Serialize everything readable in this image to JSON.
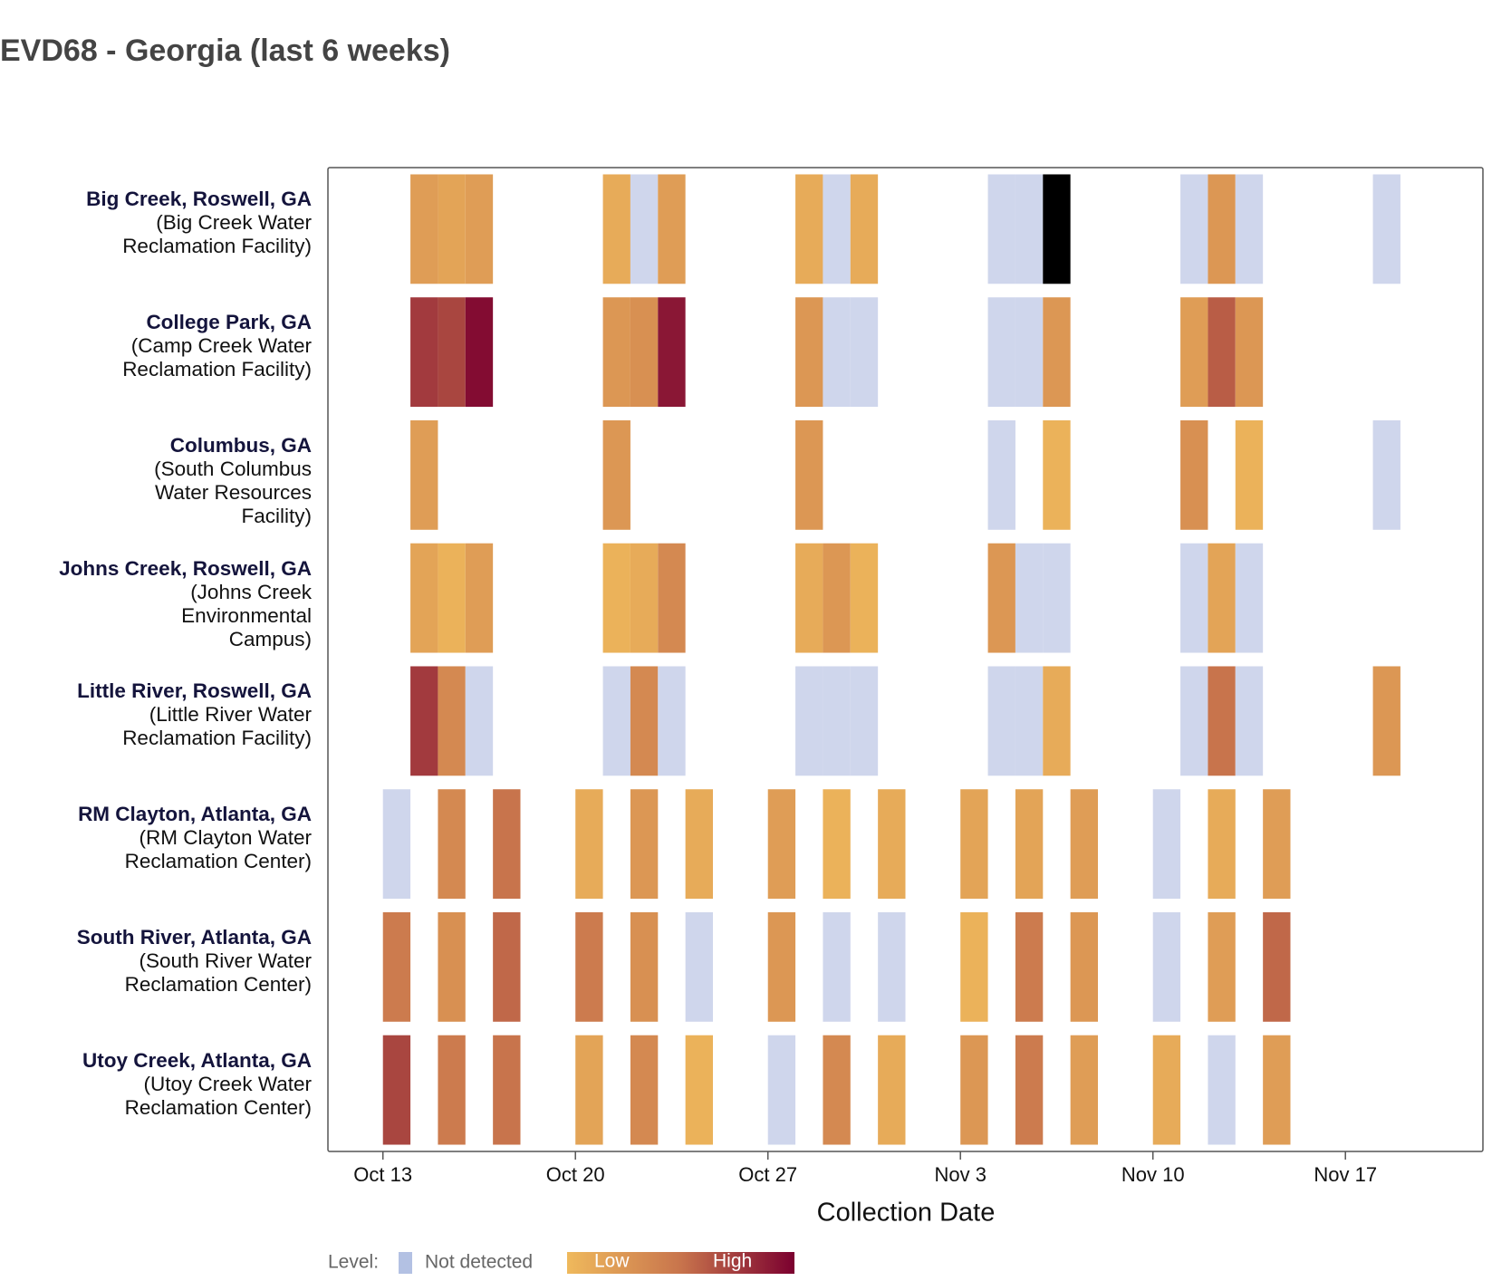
{
  "chart_data": {
    "type": "heatmap",
    "title": "EVD68 - Georgia (last 6 weeks)",
    "x_label": "Collection Date",
    "xlim": [
      "Oct 11",
      "Nov 22"
    ],
    "xticks": [
      "Oct 13",
      "Oct 20",
      "Oct 27",
      "Nov 3",
      "Nov 10",
      "Nov 17"
    ],
    "legend_title": "Level:",
    "not_detected_label": "Not detected",
    "not_detected_color": "#cfd6ec",
    "scale_low_label": "Low",
    "scale_high_label": "High",
    "colorscale": [
      "#efb95c",
      "#c8744c",
      "#7b002f"
    ],
    "overflow_color": "#000000",
    "series": [
      {
        "name": "Big Creek, Roswell, GA",
        "site": "(Big Creek Water Reclamation Facility)",
        "x": [
          "Oct 14",
          "Oct 15",
          "Oct 16",
          "Oct 21",
          "Oct 22",
          "Oct 23",
          "Oct 28",
          "Oct 29",
          "Oct 30",
          "Nov 4",
          "Nov 5",
          "Nov 6",
          "Nov 11",
          "Nov 12",
          "Nov 13",
          "Nov 18"
        ],
        "values": [
          0.2,
          0.15,
          0.2,
          0.1,
          null,
          0.2,
          0.1,
          null,
          0.1,
          null,
          null,
          1.5,
          null,
          0.25,
          null,
          null
        ]
      },
      {
        "name": "College Park, GA",
        "site": "(Camp Creek Water Reclamation Facility)",
        "x": [
          "Oct 14",
          "Oct 15",
          "Oct 16",
          "Oct 21",
          "Oct 22",
          "Oct 23",
          "Oct 28",
          "Oct 29",
          "Oct 30",
          "Nov 4",
          "Nov 5",
          "Nov 6",
          "Nov 11",
          "Nov 12",
          "Nov 13"
        ],
        "values": [
          0.75,
          0.7,
          0.95,
          0.25,
          0.3,
          0.9,
          0.25,
          null,
          null,
          null,
          null,
          0.25,
          0.2,
          0.6,
          0.25
        ]
      },
      {
        "name": "Columbus, GA",
        "site": "(South Columbus Water Resources Facility)",
        "x": [
          "Oct 14",
          "Oct 21",
          "Oct 28",
          "Nov 4",
          "Nov 6",
          "Nov 11",
          "Nov 13",
          "Nov 18"
        ],
        "values": [
          0.2,
          0.25,
          0.25,
          null,
          0.05,
          0.3,
          0.05,
          null
        ]
      },
      {
        "name": "Johns Creek, Roswell, GA",
        "site": "(Johns Creek Environmental Campus)",
        "x": [
          "Oct 14",
          "Oct 15",
          "Oct 16",
          "Oct 21",
          "Oct 22",
          "Oct 23",
          "Oct 28",
          "Oct 29",
          "Oct 30",
          "Nov 4",
          "Nov 5",
          "Nov 6",
          "Nov 11",
          "Nov 12",
          "Nov 13"
        ],
        "values": [
          0.15,
          0.05,
          0.2,
          0.05,
          0.1,
          0.35,
          0.1,
          0.25,
          0.05,
          0.25,
          null,
          null,
          null,
          0.15,
          null
        ]
      },
      {
        "name": "Little River, Roswell, GA",
        "site": "(Little River Water Reclamation Facility)",
        "x": [
          "Oct 14",
          "Oct 15",
          "Oct 16",
          "Oct 21",
          "Oct 22",
          "Oct 23",
          "Oct 28",
          "Oct 29",
          "Oct 30",
          "Nov 4",
          "Nov 5",
          "Nov 6",
          "Nov 11",
          "Nov 12",
          "Nov 13",
          "Nov 18"
        ],
        "values": [
          0.75,
          0.35,
          null,
          null,
          0.35,
          null,
          null,
          null,
          null,
          null,
          null,
          0.1,
          null,
          0.5,
          null,
          0.25
        ]
      },
      {
        "name": "RM Clayton, Atlanta, GA",
        "site": "(RM Clayton Water Reclamation Center)",
        "x": [
          "Oct 13",
          "Oct 15",
          "Oct 17",
          "Oct 20",
          "Oct 22",
          "Oct 24",
          "Oct 27",
          "Oct 29",
          "Oct 31",
          "Nov 3",
          "Nov 5",
          "Nov 7",
          "Nov 10",
          "Nov 12",
          "Nov 14"
        ],
        "values": [
          null,
          0.35,
          0.5,
          0.1,
          0.25,
          0.1,
          0.2,
          0.05,
          0.1,
          0.15,
          0.15,
          0.2,
          null,
          0.1,
          0.2
        ]
      },
      {
        "name": "South River, Atlanta, GA",
        "site": "(South River Water Reclamation Center)",
        "x": [
          "Oct 13",
          "Oct 15",
          "Oct 17",
          "Oct 20",
          "Oct 22",
          "Oct 24",
          "Oct 27",
          "Oct 29",
          "Oct 31",
          "Nov 3",
          "Nov 5",
          "Nov 7",
          "Nov 10",
          "Nov 12",
          "Nov 14"
        ],
        "values": [
          0.45,
          0.3,
          0.55,
          0.45,
          0.3,
          null,
          0.25,
          null,
          null,
          0.05,
          0.45,
          0.25,
          null,
          0.2,
          0.55
        ]
      },
      {
        "name": "Utoy Creek, Atlanta, GA",
        "site": "(Utoy Creek Water Reclamation Center)",
        "x": [
          "Oct 13",
          "Oct 15",
          "Oct 17",
          "Oct 20",
          "Oct 22",
          "Oct 24",
          "Oct 27",
          "Oct 29",
          "Oct 31",
          "Nov 3",
          "Nov 5",
          "Nov 7",
          "Nov 10",
          "Nov 12",
          "Nov 14"
        ],
        "values": [
          0.7,
          0.45,
          0.5,
          0.15,
          0.35,
          0.05,
          null,
          0.35,
          0.1,
          0.25,
          0.45,
          0.2,
          0.1,
          null,
          0.2
        ]
      }
    ]
  }
}
